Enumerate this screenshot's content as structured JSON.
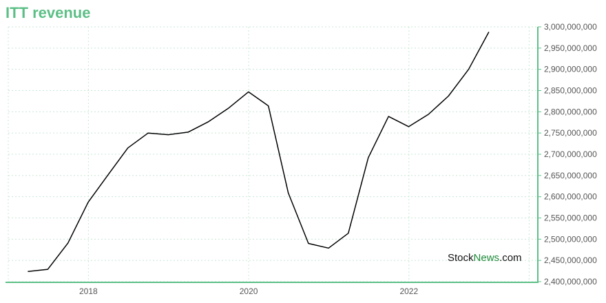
{
  "title": "ITT revenue",
  "watermark": {
    "part1": "Stock",
    "part2": "News",
    "part3": ".com"
  },
  "colors": {
    "title": "#5cbf86",
    "axis": "#5cbf86",
    "line": "#000000",
    "grid": "#c7e8d4",
    "watermark_dark": "#111111",
    "watermark_green": "#1f8a3a"
  },
  "chart_data": {
    "type": "line",
    "title": "ITT revenue",
    "xlabel": "",
    "ylabel": "",
    "xlim": [
      2017.0,
      2023.6
    ],
    "ylim": [
      2400000000,
      3000000000
    ],
    "x_ticks": [
      {
        "value": 2018,
        "label": "2018"
      },
      {
        "value": 2020,
        "label": "2020"
      },
      {
        "value": 2022,
        "label": "2022"
      }
    ],
    "y_ticks": [
      {
        "value": 2400000000,
        "label": "2,400,000,000"
      },
      {
        "value": 2450000000,
        "label": "2,450,000,000"
      },
      {
        "value": 2500000000,
        "label": "2,500,000,000"
      },
      {
        "value": 2550000000,
        "label": "2,550,000,000"
      },
      {
        "value": 2600000000,
        "label": "2,600,000,000"
      },
      {
        "value": 2650000000,
        "label": "2,650,000,000"
      },
      {
        "value": 2700000000,
        "label": "2,700,000,000"
      },
      {
        "value": 2750000000,
        "label": "2,750,000,000"
      },
      {
        "value": 2800000000,
        "label": "2,800,000,000"
      },
      {
        "value": 2850000000,
        "label": "2,850,000,000"
      },
      {
        "value": 2900000000,
        "label": "2,900,000,000"
      },
      {
        "value": 2950000000,
        "label": "2,950,000,000"
      },
      {
        "value": 3000000000,
        "label": "3,000,000,000"
      }
    ],
    "extra_x_gridlines": [
      2017.0,
      2023.5
    ],
    "grid": true,
    "series": [
      {
        "x": [
          "2017-03-31",
          "2017-06-30",
          "2017-09-30",
          "2017-12-31",
          "2018-03-31",
          "2018-06-30",
          "2018-09-30",
          "2018-12-31",
          "2019-03-31",
          "2019-06-30",
          "2019-09-30",
          "2019-12-31",
          "2020-03-31",
          "2020-06-30",
          "2020-09-30",
          "2020-12-31",
          "2021-03-31",
          "2021-06-30",
          "2021-09-30",
          "2021-12-31",
          "2022-03-31",
          "2022-06-30",
          "2022-09-30",
          "2022-12-31"
        ],
        "values": [
          2424000000,
          2429000000,
          2491000000,
          2587000000,
          2651000000,
          2715000000,
          2750000000,
          2746000000,
          2752000000,
          2776000000,
          2808000000,
          2847000000,
          2814000000,
          2609000000,
          2490000000,
          2479000000,
          2514000000,
          2692000000,
          2789000000,
          2765000000,
          2794000000,
          2837000000,
          2900000000,
          2988000000
        ]
      }
    ]
  }
}
